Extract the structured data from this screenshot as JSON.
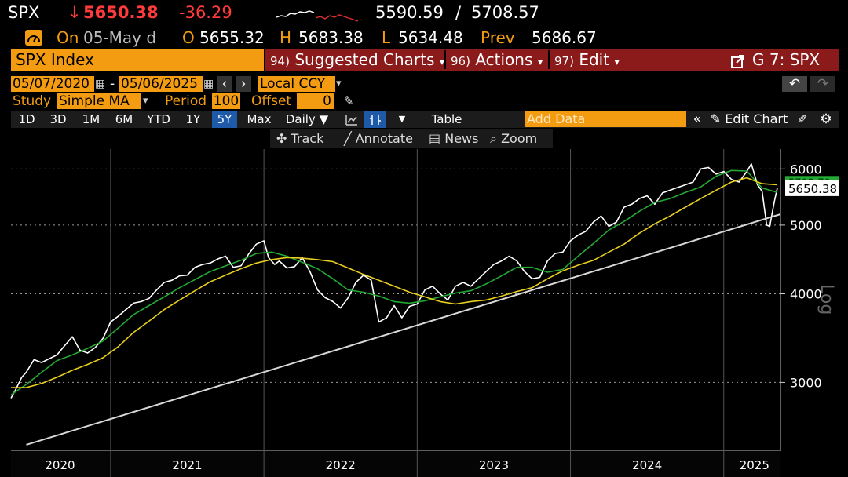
{
  "header": {
    "ticker": "SPX",
    "arrow": "↓",
    "last": "5650.38",
    "change": "-36.29",
    "range_low": "5590.59",
    "range_sep": "/",
    "range_high": "5708.57",
    "on_label": "On",
    "date_label": "05-May d",
    "open_label": "O",
    "open": "5655.32",
    "high_label": "H",
    "high": "5683.38",
    "low_label": "L",
    "low": "5634.48",
    "prev_label": "Prev",
    "prev": "5686.67"
  },
  "menu": {
    "security": "SPX Index",
    "suggested": "Suggested Charts",
    "suggested_num": "94)",
    "actions": "Actions",
    "actions_num": "96)",
    "edit": "Edit",
    "edit_num": "97)",
    "function": "G 7: SPX",
    "dropdown_arrow": "▾"
  },
  "settings": {
    "start_date": "05/07/2020",
    "dash": "-",
    "end_date": "05/06/2025",
    "currency": "Local CCY",
    "study_label": "Study",
    "study_value": "Simple MA",
    "period_label": "Period",
    "period_value": "100",
    "offset_label": "Offset",
    "offset_value": "0"
  },
  "toolbar": {
    "ranges": [
      "1D",
      "3D",
      "1M",
      "6M",
      "YTD",
      "1Y",
      "5Y",
      "Max"
    ],
    "active_range": "5Y",
    "frequency": "Daily",
    "table": "Table",
    "add_data_placeholder": "Add Data",
    "edit_chart": "Edit Chart"
  },
  "chart_controls": {
    "track": "Track",
    "annotate": "Annotate",
    "news": "News",
    "zoom": "Zoom"
  },
  "colors": {
    "accent_orange": "#f39c12",
    "menu_red": "#8b1a1a",
    "price_line": "#ffffff",
    "ma50": "#22aa33",
    "ma100": "#e8cf1e",
    "trendline": "#d8d8d8"
  },
  "chart_data": {
    "type": "line",
    "scale": "log",
    "ylabel": "Log",
    "ylim": [
      2400,
      6400
    ],
    "yticks": [
      3000,
      4000,
      5000,
      6000
    ],
    "ytick_labels": [
      "3000",
      "4000",
      "5000",
      "6000"
    ],
    "x_labels": [
      "2020",
      "2021",
      "2022",
      "2023",
      "2024",
      "2025"
    ],
    "x_label_positions": [
      2020.67,
      2021.5,
      2022.5,
      2023.5,
      2024.5,
      2025.2
    ],
    "x_separators": [
      2021.0,
      2022.0,
      2023.0,
      2024.0,
      2025.0
    ],
    "xlim": [
      2020.35,
      2025.37
    ],
    "grid": true,
    "last_value_label": "5650.38",
    "ma_value_label": "5702.70",
    "series": [
      {
        "x": [
          2020.35,
          2020.38,
          2020.42,
          2020.45,
          2020.5,
          2020.55,
          2020.6,
          2020.65,
          2020.7,
          2020.75,
          2020.8,
          2020.85,
          2020.9,
          2020.95,
          2021.0,
          2021.05,
          2021.1,
          2021.15,
          2021.2,
          2021.25,
          2021.3,
          2021.35,
          2021.4,
          2021.45,
          2021.5,
          2021.55,
          2021.6,
          2021.65,
          2021.7,
          2021.75,
          2021.8,
          2021.85,
          2021.9,
          2021.95,
          2022.0,
          2022.03,
          2022.07,
          2022.1,
          2022.15,
          2022.2,
          2022.25,
          2022.3,
          2022.35,
          2022.4,
          2022.45,
          2022.5,
          2022.55,
          2022.6,
          2022.65,
          2022.7,
          2022.75,
          2022.8,
          2022.85,
          2022.9,
          2022.95,
          2023.0,
          2023.05,
          2023.1,
          2023.15,
          2023.2,
          2023.25,
          2023.3,
          2023.35,
          2023.4,
          2023.45,
          2023.5,
          2023.55,
          2023.6,
          2023.65,
          2023.7,
          2023.75,
          2023.8,
          2023.85,
          2023.9,
          2023.95,
          2024.0,
          2024.05,
          2024.1,
          2024.15,
          2024.2,
          2024.25,
          2024.3,
          2024.35,
          2024.4,
          2024.45,
          2024.5,
          2024.55,
          2024.6,
          2024.65,
          2024.7,
          2024.75,
          2024.8,
          2024.85,
          2024.9,
          2024.95,
          2025.0,
          2025.05,
          2025.1,
          2025.15,
          2025.18,
          2025.22,
          2025.25,
          2025.28,
          2025.3,
          2025.33,
          2025.35
        ],
        "values": [
          2850,
          2930,
          3050,
          3100,
          3230,
          3200,
          3240,
          3280,
          3380,
          3480,
          3330,
          3300,
          3360,
          3460,
          3650,
          3720,
          3800,
          3880,
          3900,
          3940,
          4050,
          4150,
          4180,
          4240,
          4250,
          4360,
          4400,
          4420,
          4480,
          4520,
          4360,
          4380,
          4550,
          4700,
          4750,
          4500,
          4400,
          4450,
          4350,
          4370,
          4500,
          4300,
          4050,
          3950,
          3900,
          3820,
          3950,
          4150,
          4250,
          4180,
          3650,
          3700,
          3850,
          3700,
          3840,
          3870,
          4050,
          4100,
          4000,
          3920,
          4100,
          4150,
          4100,
          4200,
          4300,
          4400,
          4450,
          4520,
          4450,
          4300,
          4200,
          4220,
          4450,
          4560,
          4580,
          4750,
          4840,
          4900,
          5050,
          5150,
          4980,
          5050,
          5300,
          5350,
          5450,
          5500,
          5350,
          5550,
          5600,
          5650,
          5700,
          5750,
          6000,
          6030,
          5900,
          5950,
          5800,
          5750,
          5950,
          6100,
          5700,
          5580,
          5000,
          4980,
          5400,
          5650.38
        ]
      },
      {
        "x": [
          2020.35,
          2020.45,
          2020.55,
          2020.65,
          2020.75,
          2020.85,
          2020.95,
          2021.05,
          2021.15,
          2021.25,
          2021.35,
          2021.45,
          2021.55,
          2021.65,
          2021.75,
          2021.85,
          2021.95,
          2022.05,
          2022.15,
          2022.25,
          2022.35,
          2022.45,
          2022.55,
          2022.65,
          2022.75,
          2022.85,
          2022.95,
          2023.05,
          2023.15,
          2023.25,
          2023.35,
          2023.45,
          2023.55,
          2023.65,
          2023.75,
          2023.85,
          2023.95,
          2024.05,
          2024.15,
          2024.25,
          2024.35,
          2024.45,
          2024.55,
          2024.65,
          2024.75,
          2024.85,
          2024.95,
          2025.05,
          2025.15,
          2025.25,
          2025.35
        ],
        "values": [
          2880,
          2980,
          3100,
          3220,
          3280,
          3350,
          3430,
          3580,
          3740,
          3850,
          3960,
          4080,
          4190,
          4300,
          4380,
          4460,
          4560,
          4580,
          4520,
          4430,
          4340,
          4200,
          4050,
          4020,
          3970,
          3900,
          3880,
          3910,
          3960,
          4010,
          4040,
          4130,
          4240,
          4360,
          4360,
          4290,
          4330,
          4520,
          4710,
          4920,
          5060,
          5230,
          5380,
          5450,
          5560,
          5660,
          5860,
          5970,
          5960,
          5640,
          5560
        ]
      },
      {
        "x": [
          2020.35,
          2020.45,
          2020.55,
          2020.65,
          2020.75,
          2020.85,
          2020.95,
          2021.05,
          2021.15,
          2021.25,
          2021.35,
          2021.45,
          2021.55,
          2021.65,
          2021.75,
          2021.85,
          2021.95,
          2022.05,
          2022.15,
          2022.25,
          2022.35,
          2022.45,
          2022.55,
          2022.65,
          2022.75,
          2022.85,
          2022.95,
          2023.05,
          2023.15,
          2023.25,
          2023.35,
          2023.45,
          2023.55,
          2023.65,
          2023.75,
          2023.85,
          2023.95,
          2024.05,
          2024.15,
          2024.25,
          2024.35,
          2024.45,
          2024.55,
          2024.65,
          2024.75,
          2024.85,
          2024.95,
          2025.05,
          2025.15,
          2025.25,
          2025.35
        ],
        "values": [
          2950,
          2950,
          2990,
          3050,
          3120,
          3180,
          3250,
          3370,
          3530,
          3660,
          3800,
          3920,
          4040,
          4160,
          4250,
          4340,
          4420,
          4470,
          4500,
          4490,
          4470,
          4440,
          4350,
          4260,
          4180,
          4100,
          4020,
          3960,
          3900,
          3870,
          3900,
          3920,
          3970,
          4030,
          4080,
          4200,
          4310,
          4390,
          4460,
          4580,
          4700,
          4870,
          5020,
          5150,
          5300,
          5450,
          5600,
          5750,
          5830,
          5720,
          5700
        ]
      },
      {
        "x": [
          2020.45,
          2025.37
        ],
        "values": [
          2450,
          5180
        ]
      }
    ]
  }
}
